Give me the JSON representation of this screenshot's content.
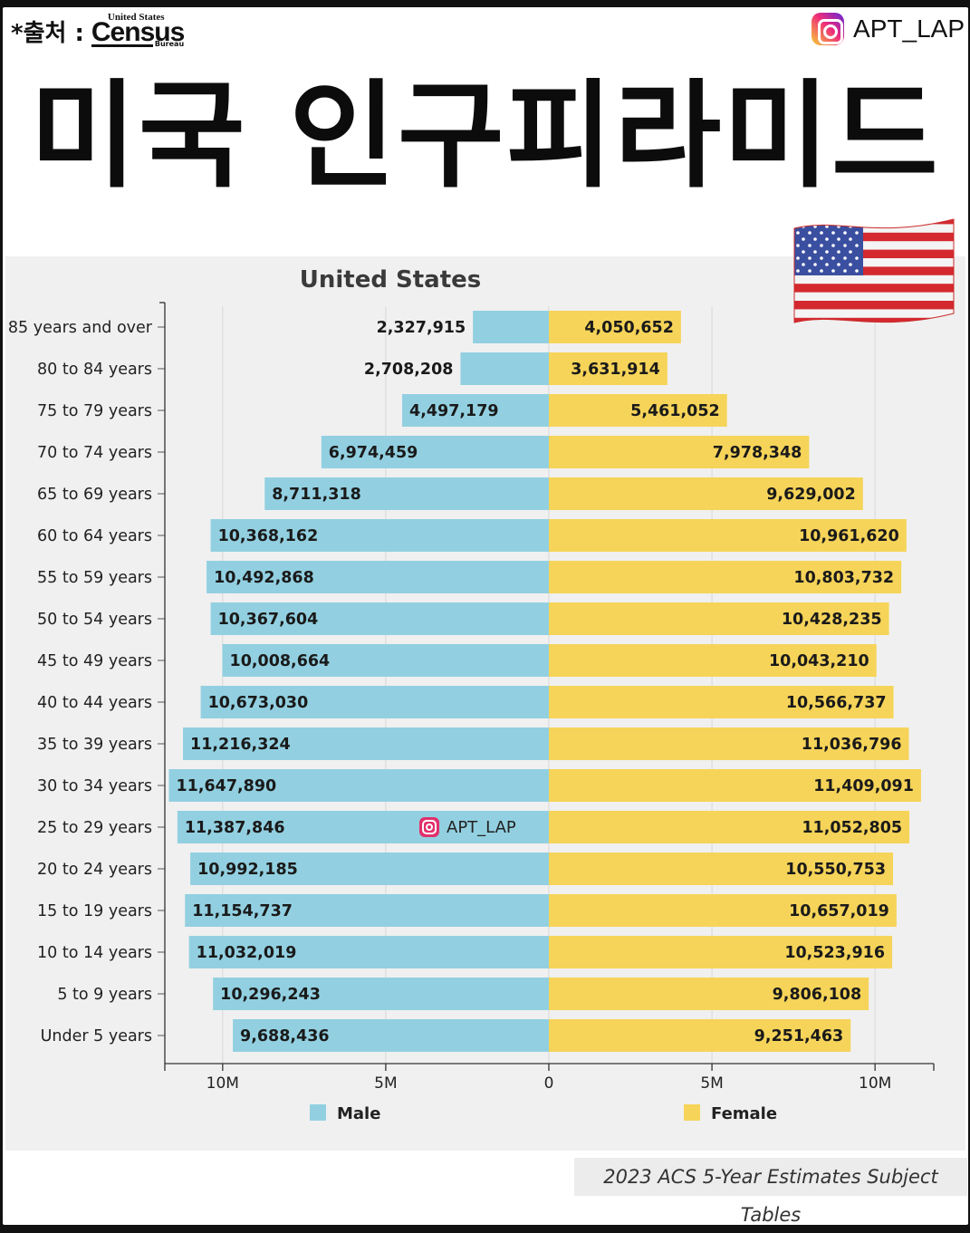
{
  "header": {
    "source_prefix": "*출처 :",
    "census_top": "United States",
    "census_main": "Census",
    "census_bottom": "Bureau",
    "brand_name": "APT_LAP",
    "brand_icon": "instagram-icon"
  },
  "main_title": "미국 인구피라미드",
  "flag_icon": "us-flag-icon",
  "footnote": "2023 ACS 5-Year Estimates Subject Tables",
  "watermark": "APT_LAP",
  "colors": {
    "male": "#92d0e1",
    "female": "#f6d459",
    "panel": "#f0f0f0"
  },
  "chart_data": {
    "type": "bar",
    "orientation": "horizontal-population-pyramid",
    "title": "United States",
    "categories": [
      "85 years and over",
      "80 to 84 years",
      "75 to 79 years",
      "70 to 74 years",
      "65 to 69 years",
      "60 to 64 years",
      "55 to 59 years",
      "50 to 54 years",
      "45 to 49 years",
      "40 to 44 years",
      "35 to 39 years",
      "30 to 34 years",
      "25 to 29 years",
      "20 to 24 years",
      "15 to 19 years",
      "10 to 14 years",
      "5 to 9 years",
      "Under 5 years"
    ],
    "series": [
      {
        "name": "Male",
        "color": "#92d0e1",
        "values": [
          2327915,
          2708208,
          4497179,
          6974459,
          8711318,
          10368162,
          10492868,
          10367604,
          10008664,
          10673030,
          11216324,
          11647890,
          11387846,
          10992185,
          11154737,
          11032019,
          10296243,
          9688436
        ],
        "labels": [
          "2,327,915",
          "2,708,208",
          "4,497,179",
          "6,974,459",
          "8,711,318",
          "10,368,162",
          "10,492,868",
          "10,367,604",
          "10,008,664",
          "10,673,030",
          "11,216,324",
          "11,647,890",
          "11,387,846",
          "10,992,185",
          "11,154,737",
          "11,032,019",
          "10,296,243",
          "9,688,436"
        ]
      },
      {
        "name": "Female",
        "color": "#f6d459",
        "values": [
          4050652,
          3631914,
          5461052,
          7978348,
          9629002,
          10961620,
          10803732,
          10428235,
          10043210,
          10566737,
          11036796,
          11409091,
          11052805,
          10550753,
          10657019,
          10523916,
          9806108,
          9251463
        ],
        "labels": [
          "4,050,652",
          "3,631,914",
          "5,461,052",
          "7,978,348",
          "9,629,002",
          "10,961,620",
          "10,803,732",
          "10,428,235",
          "10,043,210",
          "10,566,737",
          "11,036,796",
          "11,409,091",
          "11,052,805",
          "10,550,753",
          "10,657,019",
          "10,523,916",
          "9,806,108",
          "9,251,463"
        ]
      }
    ],
    "x_ticks": [
      {
        "value": -10000000,
        "label": "10M"
      },
      {
        "value": -5000000,
        "label": "5M"
      },
      {
        "value": 0,
        "label": "0"
      },
      {
        "value": 5000000,
        "label": "5M"
      },
      {
        "value": 10000000,
        "label": "10M"
      }
    ],
    "xlim": [
      -11800000,
      11800000
    ],
    "grid": true,
    "legend_position": "bottom"
  }
}
